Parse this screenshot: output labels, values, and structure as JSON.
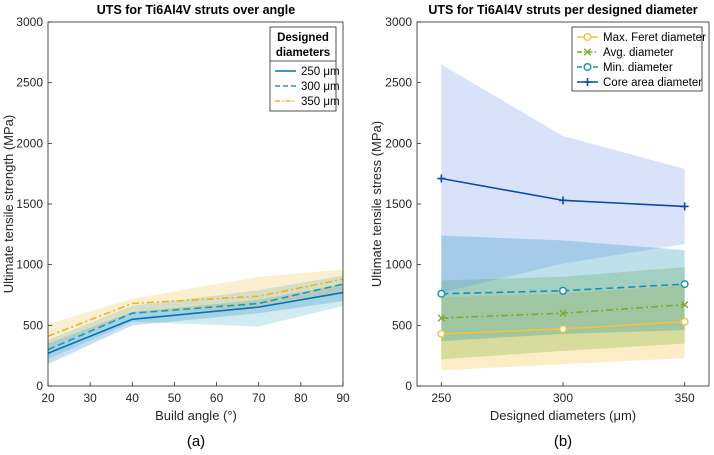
{
  "colors": {
    "blue": "#0072BD",
    "teal": "#1A9AB5",
    "yellow": "#EDB120",
    "gold": "#F5C242",
    "green": "#77AC30",
    "cyan": "#1690B3",
    "navy": "#0A4BAA",
    "navy_band": "#4F7FE6"
  },
  "subplot_labels": [
    "(a)",
    "(b)"
  ],
  "chart_data": [
    {
      "type": "line",
      "title": "UTS for Ti6Al4V struts over angle",
      "xlabel": "Build angle (°)",
      "ylabel": "Ultimate tensile strength (MPa)",
      "xlim": [
        20,
        90
      ],
      "ylim": [
        0,
        3000
      ],
      "xticks": [
        20,
        30,
        40,
        50,
        60,
        70,
        80,
        90
      ],
      "yticks": [
        0,
        500,
        1000,
        1500,
        2000,
        2500,
        3000
      ],
      "legend_title": "Designed diameters",
      "legend_title_lines": [
        "Designed",
        "diameters"
      ],
      "legend_position": "top-right",
      "x": [
        20,
        40,
        70,
        90
      ],
      "series": [
        {
          "name": "250 μm",
          "style": "solid",
          "color": "#0072BD",
          "values": [
            270,
            550,
            650,
            770
          ],
          "lower": [
            180,
            500,
            600,
            700
          ],
          "upper": [
            350,
            610,
            710,
            840
          ]
        },
        {
          "name": "300 μm",
          "style": "dashed",
          "color": "#1A9AB5",
          "values": [
            300,
            600,
            680,
            840
          ],
          "lower": [
            220,
            530,
            490,
            660
          ],
          "upper": [
            380,
            660,
            790,
            910
          ]
        },
        {
          "name": "350 μm",
          "style": "dashdot",
          "color": "#EDB120",
          "values": [
            410,
            680,
            740,
            880
          ],
          "lower": [
            320,
            600,
            640,
            780
          ],
          "upper": [
            510,
            720,
            900,
            960
          ]
        }
      ]
    },
    {
      "type": "line",
      "title": "UTS for Ti6Al4V struts per designed diameter",
      "xlabel": "Designed diameters (μm)",
      "ylabel": "Ultimate tensile stress (MPa)",
      "xlim": [
        240,
        360
      ],
      "ylim": [
        0,
        3000
      ],
      "xticks": [
        250,
        300,
        350
      ],
      "yticks": [
        0,
        500,
        1000,
        1500,
        2000,
        2500,
        3000
      ],
      "legend_position": "top-right",
      "x": [
        250,
        300,
        350
      ],
      "series": [
        {
          "name": "Max. Feret diameter",
          "marker": "o",
          "style": "solid",
          "color": "#F5C242",
          "values": [
            430,
            470,
            530
          ],
          "lower": [
            130,
            180,
            230
          ],
          "upper": [
            730,
            760,
            830
          ]
        },
        {
          "name": "Avg. diameter",
          "marker": "x",
          "style": "dashdot",
          "color": "#77AC30",
          "values": [
            560,
            600,
            670
          ],
          "lower": [
            220,
            290,
            350
          ],
          "upper": [
            870,
            900,
            980
          ]
        },
        {
          "name": "Min. diameter",
          "marker": "o",
          "style": "dashed",
          "color": "#1690B3",
          "values": [
            760,
            785,
            840
          ],
          "lower": [
            370,
            430,
            460
          ],
          "upper": [
            1240,
            1200,
            1120
          ]
        },
        {
          "name": "Core area diameter",
          "marker": "+",
          "style": "solid",
          "color": "#0A4BAA",
          "values": [
            1710,
            1530,
            1480
          ],
          "lower": [
            770,
            1010,
            1170
          ],
          "upper": [
            2650,
            2060,
            1790
          ]
        }
      ]
    }
  ]
}
